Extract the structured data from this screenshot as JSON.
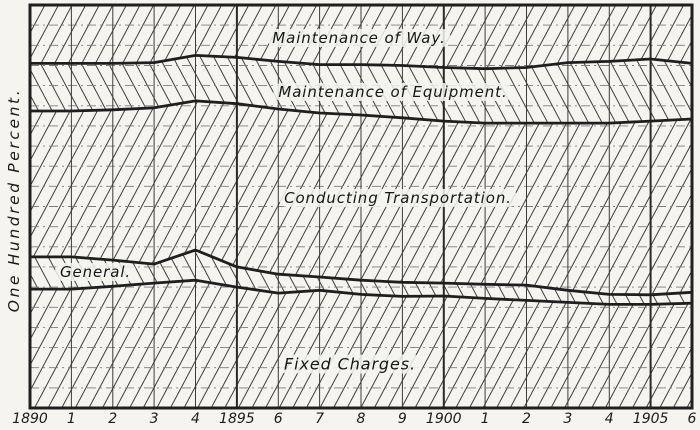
{
  "figure": {
    "background": "#f5f4ef",
    "ink": "#1f1f1f",
    "hatch_color": "#333333",
    "vgrid_color": "#3c3c3c",
    "hgrid_color": "#7d7d7d"
  },
  "labels": {
    "y_axis": "One Hundred Percent.",
    "band_maintenance_of_way": "Maintenance of Way.",
    "band_maintenance_of_equipment": "Maintenance of Equipment.",
    "band_conducting_transportation": "Conducting Transportation.",
    "band_general": "General.",
    "band_fixed_charges": "Fixed Charges."
  },
  "chart_data": {
    "type": "area",
    "variant": "100-percent-stacked-band-chart",
    "ylabel": "One Hundred Percent.",
    "ylim": [
      0,
      100
    ],
    "x": [
      1890,
      1891,
      1892,
      1893,
      1894,
      1895,
      1896,
      1897,
      1898,
      1899,
      1900,
      1901,
      1902,
      1903,
      1904,
      1905,
      1906
    ],
    "x_tick_labels": [
      "1890",
      "1",
      "2",
      "3",
      "4",
      "1895",
      "6",
      "7",
      "8",
      "9",
      "1900",
      "1",
      "2",
      "3",
      "4",
      "1905",
      "6"
    ],
    "grid": {
      "horizontal_step_percent": 5,
      "vertical_step_years": 1,
      "emphasized_years": [
        1890,
        1895,
        1900,
        1905
      ]
    },
    "stack_order_top_to_bottom": [
      "Maintenance of Way.",
      "Maintenance of Equipment.",
      "Conducting Transportation.",
      "General.",
      "Fixed Charges."
    ],
    "series": [
      {
        "name": "Maintenance of Way.",
        "hatch": "forward",
        "values": [
          14.5,
          14.5,
          14.5,
          14.3,
          12.5,
          13.0,
          14.0,
          14.8,
          14.8,
          15.0,
          15.5,
          15.8,
          15.5,
          14.3,
          14.0,
          13.4,
          14.5
        ]
      },
      {
        "name": "Maintenance of Equipment.",
        "hatch": "backward",
        "values": [
          11.8,
          11.8,
          11.5,
          11.2,
          11.3,
          11.5,
          11.8,
          12.0,
          12.5,
          13.0,
          13.3,
          13.5,
          13.8,
          15.0,
          15.3,
          15.4,
          13.8
        ]
      },
      {
        "name": "Conducting Transportation.",
        "hatch": "forward",
        "values": [
          36.2,
          36.2,
          37.3,
          38.8,
          37.0,
          40.5,
          41.0,
          40.7,
          41.0,
          40.8,
          40.2,
          40.0,
          40.2,
          41.5,
          42.5,
          43.1,
          43.0
        ]
      },
      {
        "name": "General.",
        "hatch": "backward",
        "values": [
          8.0,
          8.0,
          6.5,
          4.7,
          7.5,
          5.0,
          4.7,
          3.3,
          3.5,
          3.5,
          3.2,
          3.5,
          3.8,
          3.0,
          2.5,
          2.4,
          2.7
        ]
      },
      {
        "name": "Fixed Charges.",
        "hatch": "forward",
        "values": [
          29.5,
          29.5,
          30.2,
          31.0,
          31.7,
          30.0,
          28.5,
          29.2,
          28.2,
          27.7,
          27.8,
          27.2,
          26.7,
          26.2,
          25.7,
          25.7,
          26.0
        ]
      }
    ],
    "cumulative_boundaries_from_top": {
      "maintenance_of_way": [
        14.5,
        14.5,
        14.5,
        14.3,
        12.5,
        13.0,
        14.0,
        14.8,
        14.8,
        15.0,
        15.5,
        15.8,
        15.5,
        14.3,
        14.0,
        13.4,
        14.5
      ],
      "maintenance_of_equipment": [
        26.3,
        26.3,
        26.0,
        25.5,
        23.8,
        24.5,
        25.8,
        26.8,
        27.3,
        28.0,
        28.8,
        29.3,
        29.3,
        29.3,
        29.3,
        28.8,
        28.3
      ],
      "conducting_transportation": [
        62.5,
        62.5,
        63.3,
        64.3,
        60.8,
        65.0,
        66.8,
        67.5,
        68.3,
        68.8,
        69.0,
        69.3,
        69.5,
        70.8,
        71.8,
        71.9,
        71.3
      ],
      "general": [
        70.5,
        70.5,
        69.8,
        69.0,
        68.3,
        70.0,
        71.5,
        70.8,
        71.8,
        72.3,
        72.2,
        72.8,
        73.3,
        73.8,
        74.3,
        74.3,
        74.0
      ]
    }
  }
}
